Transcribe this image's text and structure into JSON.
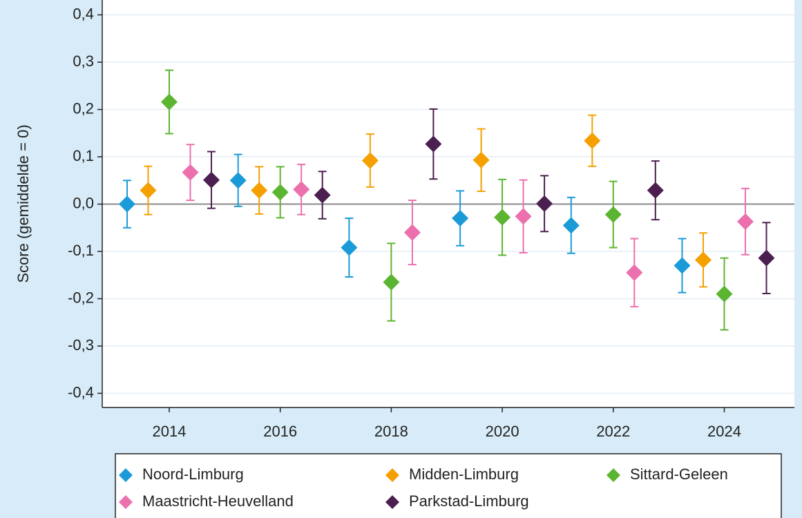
{
  "chart_data": {
    "type": "errorbar",
    "y_label": "Score (gemiddelde = 0)",
    "categories": [
      "2014",
      "2016",
      "2018",
      "2020",
      "2022",
      "2024"
    ],
    "ylim": [
      -0.43,
      0.43
    ],
    "yticks": [
      {
        "value": -0.4,
        "label": "-0,4"
      },
      {
        "value": -0.3,
        "label": "-0,3"
      },
      {
        "value": -0.2,
        "label": "-0,2"
      },
      {
        "value": -0.1,
        "label": "-0,1"
      },
      {
        "value": 0,
        "label": "0,0"
      },
      {
        "value": 0.1,
        "label": "0,1"
      },
      {
        "value": 0.2,
        "label": "0,2"
      },
      {
        "value": 0.3,
        "label": "0,3"
      },
      {
        "value": 0.4,
        "label": "0,4"
      }
    ],
    "grid": true,
    "legend": "bottom",
    "series": [
      {
        "name": "Noord-Limburg",
        "color": "#1a9bd7",
        "values": [
          0.0,
          0.05,
          -0.092,
          -0.03,
          -0.045,
          -0.13
        ],
        "errors": [
          0.05,
          0.055,
          0.062,
          0.058,
          0.059,
          0.057
        ]
      },
      {
        "name": "Midden-Limburg",
        "color": "#f5a000",
        "values": [
          0.029,
          0.029,
          0.092,
          0.093,
          0.134,
          -0.118
        ],
        "errors": [
          0.051,
          0.05,
          0.056,
          0.066,
          0.054,
          0.057
        ]
      },
      {
        "name": "Sittard-Geleen",
        "color": "#5cb531",
        "values": [
          0.216,
          0.025,
          -0.165,
          -0.028,
          -0.022,
          -0.19
        ],
        "errors": [
          0.067,
          0.054,
          0.082,
          0.08,
          0.07,
          0.076
        ]
      },
      {
        "name": "Maastricht-Heuvelland",
        "color": "#ec6fae",
        "values": [
          0.067,
          0.031,
          -0.06,
          -0.026,
          -0.145,
          -0.037
        ],
        "errors": [
          0.059,
          0.053,
          0.068,
          0.077,
          0.072,
          0.07
        ]
      },
      {
        "name": "Parkstad-Limburg",
        "color": "#4b1f4f",
        "values": [
          0.051,
          0.019,
          0.127,
          0.001,
          0.029,
          -0.114
        ],
        "errors": [
          0.06,
          0.05,
          0.074,
          0.059,
          0.062,
          0.075
        ]
      }
    ]
  }
}
